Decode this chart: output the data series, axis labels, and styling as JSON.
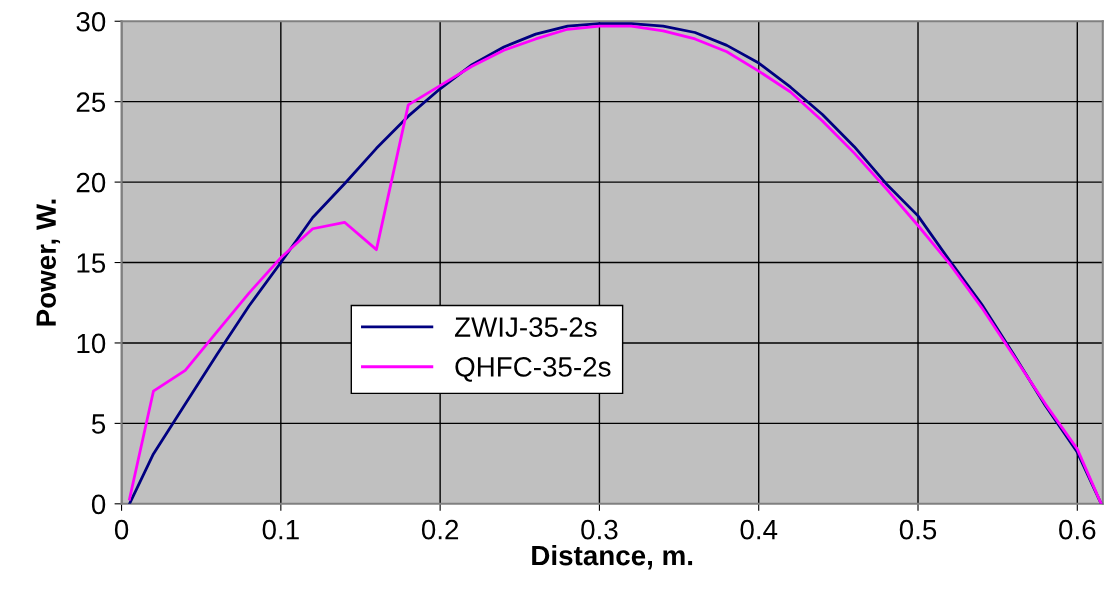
{
  "chart_data": {
    "type": "line",
    "xlabel": "Distance, m.",
    "ylabel": "Power, W.",
    "x": [
      0.005,
      0.02,
      0.04,
      0.06,
      0.08,
      0.1,
      0.12,
      0.14,
      0.16,
      0.18,
      0.2,
      0.22,
      0.24,
      0.26,
      0.28,
      0.3,
      0.32,
      0.34,
      0.36,
      0.38,
      0.4,
      0.42,
      0.44,
      0.46,
      0.48,
      0.5,
      0.52,
      0.54,
      0.56,
      0.58,
      0.6,
      0.615
    ],
    "series": [
      {
        "name": "ZWIJ-35-2s",
        "color": "#000080",
        "values": [
          0,
          3.1,
          6.2,
          9.3,
          12.3,
          15.0,
          17.8,
          19.9,
          22.1,
          24.1,
          25.8,
          27.3,
          28.4,
          29.2,
          29.7,
          29.85,
          29.85,
          29.7,
          29.3,
          28.5,
          27.4,
          25.9,
          24.2,
          22.2,
          19.9,
          17.9,
          15.1,
          12.4,
          9.3,
          6.1,
          3.2,
          0
        ]
      },
      {
        "name": "QHFC-35-2s",
        "color": "#ff00ff",
        "values": [
          0.3,
          7.0,
          8.3,
          10.7,
          13.1,
          15.3,
          17.1,
          17.5,
          15.8,
          24.8,
          26.0,
          27.2,
          28.2,
          28.9,
          29.5,
          29.7,
          29.7,
          29.4,
          28.9,
          28.1,
          26.9,
          25.6,
          23.8,
          21.8,
          19.6,
          17.3,
          14.9,
          12.2,
          9.2,
          6.2,
          3.4,
          0
        ]
      }
    ],
    "xlim": [
      0,
      0.616
    ],
    "xticks": [
      0,
      0.1,
      0.2,
      0.3,
      0.4,
      0.5,
      0.6
    ],
    "ylim": [
      0,
      30
    ],
    "yticks": [
      0,
      5,
      10,
      15,
      20,
      25,
      30
    ],
    "grid": true,
    "legend": "center left",
    "marker": "none",
    "line_style": "solid"
  }
}
